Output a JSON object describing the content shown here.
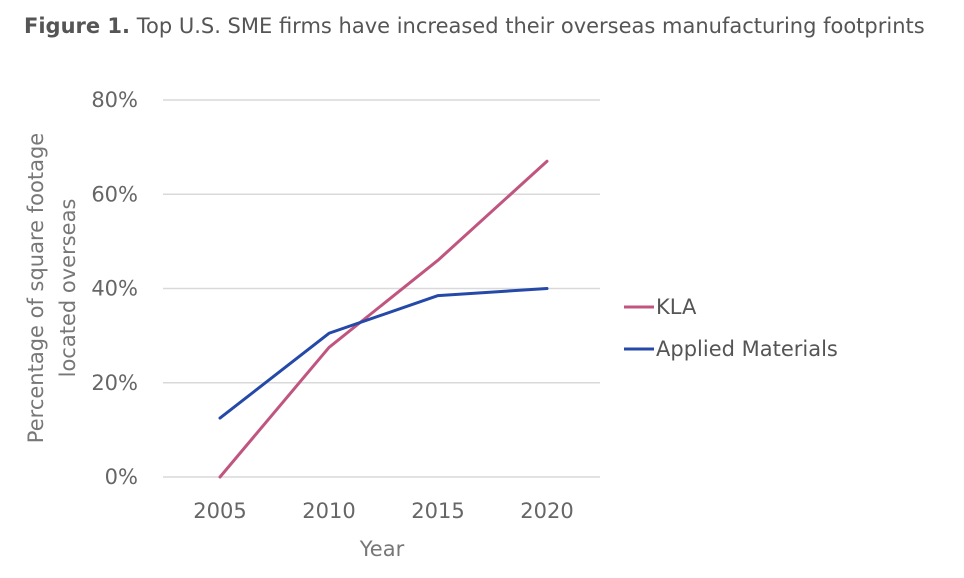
{
  "figure": {
    "label": "Figure 1.",
    "caption": "Top U.S. SME firms have increased their overseas manufacturing footprints"
  },
  "chart_data": {
    "type": "line",
    "x": [
      2005,
      2010,
      2015,
      2020
    ],
    "x_tick_labels": [
      "2005",
      "2010",
      "2015",
      "2020"
    ],
    "y_tick_labels": [
      "0%",
      "20%",
      "40%",
      "60%",
      "80%"
    ],
    "y_ticks": [
      0,
      20,
      40,
      60,
      80
    ],
    "ylim": [
      0,
      80
    ],
    "xlabel": "Year",
    "ylabel_lines": [
      "Percentage of square footage",
      "located overseas"
    ],
    "grid": true,
    "legend_position": "right",
    "series": [
      {
        "name": "KLA",
        "color": "#c0567f",
        "values": [
          0,
          27.5,
          46,
          67
        ]
      },
      {
        "name": "Applied Materials",
        "color": "#2549a8",
        "values": [
          12.5,
          30.5,
          38.5,
          40
        ]
      }
    ],
    "gridline_color": "#d9d9d9"
  }
}
